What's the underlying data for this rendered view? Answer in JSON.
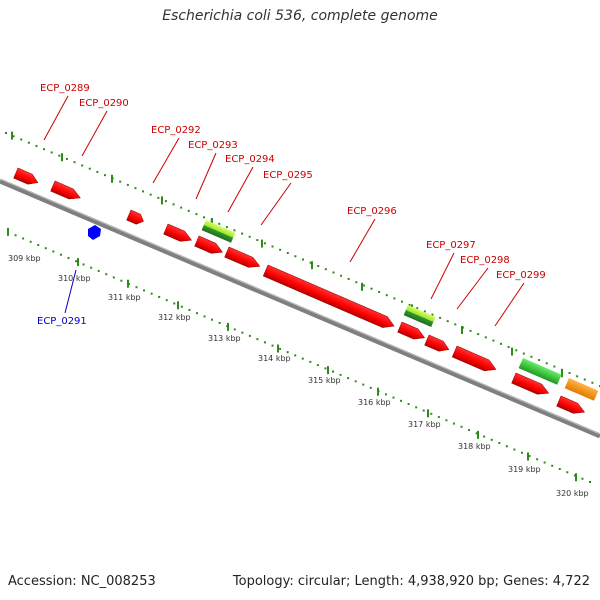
{
  "title": "Escherichia coli 536, complete genome",
  "footer": {
    "accession": "Accession: NC_008253",
    "summary": "Topology: circular; Length: 4,938,920 bp; Genes: 4,722"
  },
  "colors": {
    "axis": "#7f7f7f",
    "tick": "#2e8b1a",
    "gene_forward_label": "#cc0000",
    "gene_reverse_label": "#0000cc",
    "cds": "#ff0000",
    "cds_reverse": "#0000ff",
    "rna_light": "#9be22c",
    "rna_green": "#33cc33",
    "other": "#ff9900"
  },
  "axis_labels": [
    "309 kbp",
    "310 kbp",
    "311 kbp",
    "312 kbp",
    "313 kbp",
    "314 kbp",
    "315 kbp",
    "316 kbp",
    "317 kbp",
    "318 kbp",
    "319 kbp",
    "320 kbp"
  ],
  "gene_labels": [
    {
      "text": "ECP_0289",
      "strand": "forward"
    },
    {
      "text": "ECP_0290",
      "strand": "forward"
    },
    {
      "text": "ECP_0292",
      "strand": "forward"
    },
    {
      "text": "ECP_0293",
      "strand": "forward"
    },
    {
      "text": "ECP_0294",
      "strand": "forward"
    },
    {
      "text": "ECP_0295",
      "strand": "forward"
    },
    {
      "text": "ECP_0296",
      "strand": "forward"
    },
    {
      "text": "ECP_0297",
      "strand": "forward"
    },
    {
      "text": "ECP_0298",
      "strand": "forward"
    },
    {
      "text": "ECP_0299",
      "strand": "forward"
    },
    {
      "text": "ECP_0291",
      "strand": "reverse"
    }
  ]
}
